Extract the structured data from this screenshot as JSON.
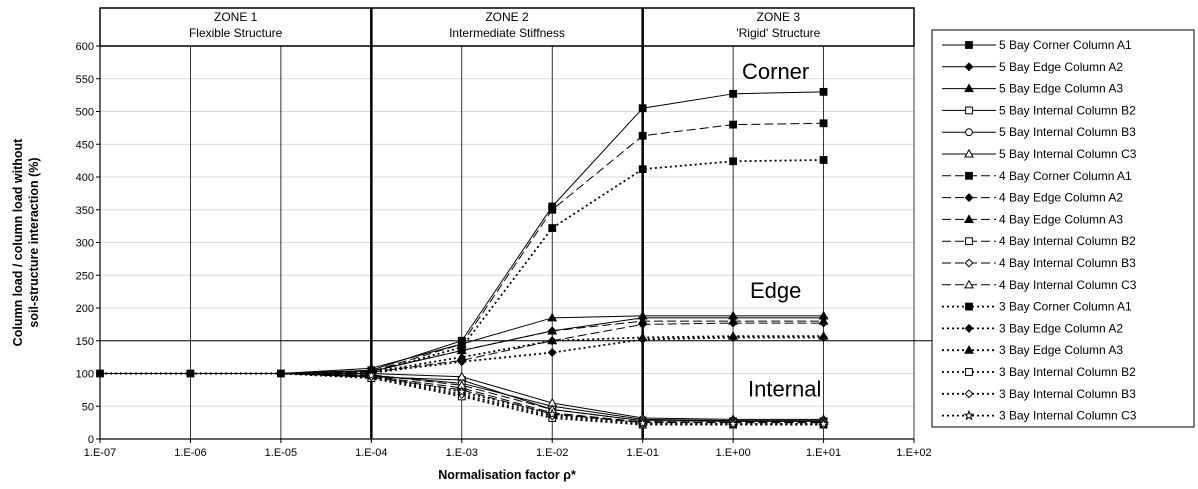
{
  "chart_data": {
    "type": "line",
    "xscale": "log",
    "x": [
      "1.E-07",
      "1.E-06",
      "1.E-05",
      "1.E-04",
      "1.E-03",
      "1.E-02",
      "1.E-01",
      "1.E+00",
      "1.E+01"
    ],
    "xlim": [
      "1.E-07",
      "1.E+02"
    ],
    "xticks": [
      "1.E-07",
      "1.E-06",
      "1.E-05",
      "1.E-04",
      "1.E-03",
      "1.E-02",
      "1.E-01",
      "1.E+00",
      "1.E+01",
      "1.E+02"
    ],
    "ylim": [
      0,
      600
    ],
    "yticks": [
      0,
      50,
      100,
      150,
      200,
      250,
      300,
      350,
      400,
      450,
      500,
      550,
      600
    ],
    "xlabel": "Normalisation factor ρ*",
    "ylabel_lines": [
      "Column load / column load without",
      "soil-structure interaction (%)"
    ],
    "grid": true,
    "legend_position": "right",
    "reference_line_y": 150,
    "zones": [
      {
        "title": "ZONE 1",
        "subtitle": "Flexible Structure"
      },
      {
        "title": "ZONE 2",
        "subtitle": "Intermediate Stiffness"
      },
      {
        "title": "ZONE 3",
        "subtitle": "'Rigid' Structure"
      }
    ],
    "annotations": [
      {
        "text": "Corner",
        "near_y": 550
      },
      {
        "text": "Edge",
        "near_y": 215
      },
      {
        "text": "Internal",
        "near_y": 65
      }
    ],
    "series": [
      {
        "name": "5 Bay Corner Column A1",
        "values": [
          100,
          100,
          100,
          105,
          150,
          355,
          505,
          527,
          530
        ],
        "dash": "solid",
        "marker": "square-filled"
      },
      {
        "name": "5 Bay Edge Column A2",
        "values": [
          100,
          100,
          100,
          103,
          135,
          165,
          185,
          185,
          185
        ],
        "dash": "solid",
        "marker": "diamond-filled"
      },
      {
        "name": "5 Bay Edge Column A3",
        "values": [
          100,
          100,
          100,
          108,
          145,
          185,
          188,
          188,
          188
        ],
        "dash": "solid",
        "marker": "triangle-filled"
      },
      {
        "name": "5 Bay Internal Column B2",
        "values": [
          100,
          100,
          100,
          95,
          90,
          45,
          28,
          27,
          27
        ],
        "dash": "solid",
        "marker": "square-open"
      },
      {
        "name": "5 Bay Internal Column B3",
        "values": [
          100,
          100,
          100,
          97,
          85,
          50,
          30,
          28,
          28
        ],
        "dash": "solid",
        "marker": "circle-open"
      },
      {
        "name": "5 Bay Internal Column C3",
        "values": [
          100,
          100,
          100,
          100,
          95,
          55,
          32,
          30,
          30
        ],
        "dash": "solid",
        "marker": "triangle-open"
      },
      {
        "name": "4 Bay Corner Column A1",
        "values": [
          100,
          100,
          100,
          103,
          145,
          350,
          463,
          480,
          482
        ],
        "dash": "dashed",
        "marker": "square-filled"
      },
      {
        "name": "4 Bay Edge Column A2",
        "values": [
          100,
          100,
          100,
          102,
          120,
          150,
          175,
          177,
          177
        ],
        "dash": "dashed",
        "marker": "diamond-filled"
      },
      {
        "name": "4 Bay Edge Column A3",
        "values": [
          100,
          100,
          100,
          104,
          135,
          165,
          180,
          180,
          180
        ],
        "dash": "dashed",
        "marker": "triangle-filled"
      },
      {
        "name": "4 Bay Internal Column B2",
        "values": [
          100,
          100,
          100,
          94,
          75,
          38,
          25,
          25,
          25
        ],
        "dash": "dashed",
        "marker": "square-open"
      },
      {
        "name": "4 Bay Internal Column B3",
        "values": [
          100,
          100,
          100,
          96,
          78,
          40,
          26,
          25,
          25
        ],
        "dash": "dashed",
        "marker": "diamond-open"
      },
      {
        "name": "4 Bay Internal Column C3",
        "values": [
          100,
          100,
          100,
          98,
          82,
          45,
          28,
          27,
          27
        ],
        "dash": "dashed",
        "marker": "triangle-open"
      },
      {
        "name": "3 Bay Corner Column A1",
        "values": [
          100,
          100,
          100,
          102,
          140,
          322,
          412,
          424,
          426
        ],
        "dash": "dotted",
        "marker": "square-filled"
      },
      {
        "name": "3 Bay Edge Column A2",
        "values": [
          100,
          100,
          100,
          101,
          118,
          132,
          152,
          155,
          155
        ],
        "dash": "dotted",
        "marker": "diamond-filled"
      },
      {
        "name": "3 Bay Edge Column A3",
        "values": [
          100,
          100,
          100,
          102,
          125,
          150,
          155,
          157,
          157
        ],
        "dash": "dotted",
        "marker": "triangle-filled"
      },
      {
        "name": "3 Bay Internal Column B2",
        "values": [
          100,
          100,
          100,
          93,
          65,
          32,
          22,
          22,
          22
        ],
        "dash": "dotted",
        "marker": "square-open"
      },
      {
        "name": "3 Bay Internal Column B3",
        "values": [
          100,
          100,
          100,
          95,
          68,
          35,
          23,
          22,
          22
        ],
        "dash": "dotted",
        "marker": "diamond-open"
      },
      {
        "name": "3 Bay Internal Column C3",
        "values": [
          100,
          100,
          100,
          97,
          72,
          38,
          24,
          23,
          23
        ],
        "dash": "dotted",
        "marker": "star-open"
      }
    ]
  }
}
